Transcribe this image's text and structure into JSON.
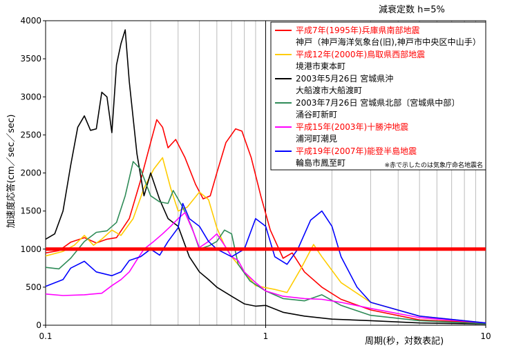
{
  "chart_data": {
    "type": "line",
    "title": "減衰定数 h=5%",
    "xlabel": "周期(秒，対数表記)",
    "ylabel": "加速度応答(cm／sec／sec)",
    "xscale": "log",
    "xlim": [
      0.1,
      10
    ],
    "ylim": [
      0,
      4000
    ],
    "x_ticks": [
      "0.1",
      "1",
      "10"
    ],
    "y_ticks": [
      "0",
      "500",
      "1000",
      "1500",
      "2000",
      "2500",
      "3000",
      "3500",
      "4000"
    ],
    "grid": "vertical log grid",
    "legend_position": "top-right",
    "legend_note": "※赤で示したのは気象庁命名地震名",
    "reference_line": {
      "y": 1000,
      "color": "#ff0000"
    },
    "series": [
      {
        "name": "平成7年(1995年)兵庫県南部地震",
        "sublabel": "神戸（神戸海洋気象台(旧),神戸市中央区中山手）",
        "name_color": "#ff0000",
        "color": "#ff0000",
        "points": [
          [
            0.1,
            950
          ],
          [
            0.115,
            980
          ],
          [
            0.13,
            1090
          ],
          [
            0.15,
            1150
          ],
          [
            0.17,
            1080
          ],
          [
            0.19,
            1130
          ],
          [
            0.21,
            1150
          ],
          [
            0.24,
            1400
          ],
          [
            0.27,
            1900
          ],
          [
            0.3,
            2400
          ],
          [
            0.32,
            2700
          ],
          [
            0.34,
            2600
          ],
          [
            0.36,
            2330
          ],
          [
            0.39,
            2440
          ],
          [
            0.43,
            2200
          ],
          [
            0.48,
            1850
          ],
          [
            0.52,
            1660
          ],
          [
            0.56,
            1700
          ],
          [
            0.6,
            2000
          ],
          [
            0.66,
            2400
          ],
          [
            0.73,
            2580
          ],
          [
            0.78,
            2550
          ],
          [
            0.86,
            2200
          ],
          [
            0.95,
            1700
          ],
          [
            1.05,
            1250
          ],
          [
            1.2,
            880
          ],
          [
            1.32,
            950
          ],
          [
            1.5,
            700
          ],
          [
            1.8,
            500
          ],
          [
            2.2,
            340
          ],
          [
            3,
            200
          ],
          [
            5,
            70
          ],
          [
            10,
            30
          ]
        ]
      },
      {
        "name": "平成12年(2000年)鳥取県西部地震",
        "sublabel": "境港市東本町",
        "name_color": "#ff0000",
        "color": "#ffcc00",
        "points": [
          [
            0.1,
            910
          ],
          [
            0.12,
            970
          ],
          [
            0.135,
            1050
          ],
          [
            0.15,
            1180
          ],
          [
            0.165,
            1050
          ],
          [
            0.18,
            1130
          ],
          [
            0.2,
            1250
          ],
          [
            0.22,
            1180
          ],
          [
            0.25,
            1400
          ],
          [
            0.28,
            1800
          ],
          [
            0.31,
            2050
          ],
          [
            0.34,
            2200
          ],
          [
            0.37,
            1800
          ],
          [
            0.4,
            1500
          ],
          [
            0.44,
            1550
          ],
          [
            0.5,
            1750
          ],
          [
            0.55,
            1650
          ],
          [
            0.6,
            1280
          ],
          [
            0.65,
            1050
          ],
          [
            0.7,
            900
          ],
          [
            0.8,
            700
          ],
          [
            0.9,
            520
          ],
          [
            1.1,
            470
          ],
          [
            1.25,
            430
          ],
          [
            1.45,
            750
          ],
          [
            1.65,
            1060
          ],
          [
            1.8,
            900
          ],
          [
            2.2,
            560
          ],
          [
            3,
            300
          ],
          [
            5,
            120
          ],
          [
            10,
            30
          ]
        ]
      },
      {
        "name": "2003年5月26日 宮城県沖",
        "sublabel": "大船渡市大船渡町",
        "name_color": "#000000",
        "color": "#000000",
        "points": [
          [
            0.1,
            1130
          ],
          [
            0.11,
            1200
          ],
          [
            0.12,
            1500
          ],
          [
            0.13,
            2100
          ],
          [
            0.14,
            2600
          ],
          [
            0.15,
            2750
          ],
          [
            0.16,
            2560
          ],
          [
            0.17,
            2580
          ],
          [
            0.18,
            3060
          ],
          [
            0.19,
            3000
          ],
          [
            0.2,
            2530
          ],
          [
            0.21,
            3420
          ],
          [
            0.22,
            3700
          ],
          [
            0.23,
            3880
          ],
          [
            0.24,
            3200
          ],
          [
            0.26,
            2250
          ],
          [
            0.28,
            1700
          ],
          [
            0.3,
            2000
          ],
          [
            0.33,
            1650
          ],
          [
            0.36,
            1400
          ],
          [
            0.4,
            1300
          ],
          [
            0.45,
            900
          ],
          [
            0.5,
            700
          ],
          [
            0.55,
            600
          ],
          [
            0.6,
            500
          ],
          [
            0.7,
            380
          ],
          [
            0.8,
            280
          ],
          [
            0.9,
            250
          ],
          [
            1,
            260
          ],
          [
            1.2,
            170
          ],
          [
            1.5,
            120
          ],
          [
            2,
            80
          ],
          [
            3,
            60
          ],
          [
            5,
            30
          ],
          [
            10,
            15
          ]
        ]
      },
      {
        "name": "2003年7月26日 宮城県北部〔宮城県中部〕",
        "sublabel": "涌谷町新町",
        "name_color": "#000000",
        "color": "#2e8b57",
        "points": [
          [
            0.1,
            760
          ],
          [
            0.115,
            740
          ],
          [
            0.13,
            880
          ],
          [
            0.15,
            1100
          ],
          [
            0.17,
            1220
          ],
          [
            0.19,
            1240
          ],
          [
            0.21,
            1350
          ],
          [
            0.23,
            1700
          ],
          [
            0.25,
            2150
          ],
          [
            0.27,
            2050
          ],
          [
            0.3,
            1700
          ],
          [
            0.33,
            1620
          ],
          [
            0.36,
            1600
          ],
          [
            0.38,
            1770
          ],
          [
            0.42,
            1550
          ],
          [
            0.46,
            1300
          ],
          [
            0.5,
            1000
          ],
          [
            0.55,
            1040
          ],
          [
            0.6,
            1100
          ],
          [
            0.65,
            1250
          ],
          [
            0.7,
            1200
          ],
          [
            0.75,
            800
          ],
          [
            0.85,
            580
          ],
          [
            1,
            450
          ],
          [
            1.2,
            350
          ],
          [
            1.5,
            320
          ],
          [
            1.8,
            400
          ],
          [
            2.2,
            260
          ],
          [
            3,
            130
          ],
          [
            5,
            60
          ],
          [
            10,
            20
          ]
        ]
      },
      {
        "name": "平成15年(2003年)十勝沖地震",
        "sublabel": "浦河町潮見",
        "name_color": "#ff0000",
        "color": "#ff00ff",
        "points": [
          [
            0.1,
            410
          ],
          [
            0.12,
            390
          ],
          [
            0.15,
            400
          ],
          [
            0.18,
            420
          ],
          [
            0.2,
            520
          ],
          [
            0.22,
            600
          ],
          [
            0.24,
            700
          ],
          [
            0.26,
            860
          ],
          [
            0.28,
            1000
          ],
          [
            0.31,
            1100
          ],
          [
            0.34,
            1200
          ],
          [
            0.37,
            1300
          ],
          [
            0.4,
            1400
          ],
          [
            0.43,
            1480
          ],
          [
            0.47,
            1220
          ],
          [
            0.5,
            1020
          ],
          [
            0.55,
            1100
          ],
          [
            0.6,
            1200
          ],
          [
            0.65,
            1050
          ],
          [
            0.7,
            900
          ],
          [
            0.75,
            850
          ],
          [
            0.8,
            700
          ],
          [
            0.9,
            560
          ],
          [
            1,
            450
          ],
          [
            1.2,
            380
          ],
          [
            1.5,
            350
          ],
          [
            1.8,
            340
          ],
          [
            2.2,
            300
          ],
          [
            3,
            220
          ],
          [
            5,
            100
          ],
          [
            10,
            30
          ]
        ]
      },
      {
        "name": "平成19年(2007年)能登半島地震",
        "sublabel": "輪島市鳳至町",
        "name_color": "#ff0000",
        "color": "#0000ff",
        "points": [
          [
            0.1,
            510
          ],
          [
            0.12,
            600
          ],
          [
            0.13,
            750
          ],
          [
            0.15,
            840
          ],
          [
            0.17,
            700
          ],
          [
            0.2,
            650
          ],
          [
            0.22,
            700
          ],
          [
            0.24,
            850
          ],
          [
            0.27,
            900
          ],
          [
            0.3,
            1000
          ],
          [
            0.33,
            920
          ],
          [
            0.36,
            1100
          ],
          [
            0.4,
            1280
          ],
          [
            0.42,
            1600
          ],
          [
            0.45,
            1400
          ],
          [
            0.5,
            1300
          ],
          [
            0.55,
            1100
          ],
          [
            0.6,
            1000
          ],
          [
            0.7,
            900
          ],
          [
            0.8,
            1000
          ],
          [
            0.9,
            1400
          ],
          [
            1,
            1300
          ],
          [
            1.1,
            900
          ],
          [
            1.25,
            800
          ],
          [
            1.4,
            1000
          ],
          [
            1.6,
            1380
          ],
          [
            1.8,
            1500
          ],
          [
            2,
            1300
          ],
          [
            2.2,
            900
          ],
          [
            2.6,
            500
          ],
          [
            3,
            300
          ],
          [
            5,
            120
          ],
          [
            10,
            30
          ]
        ]
      }
    ]
  }
}
